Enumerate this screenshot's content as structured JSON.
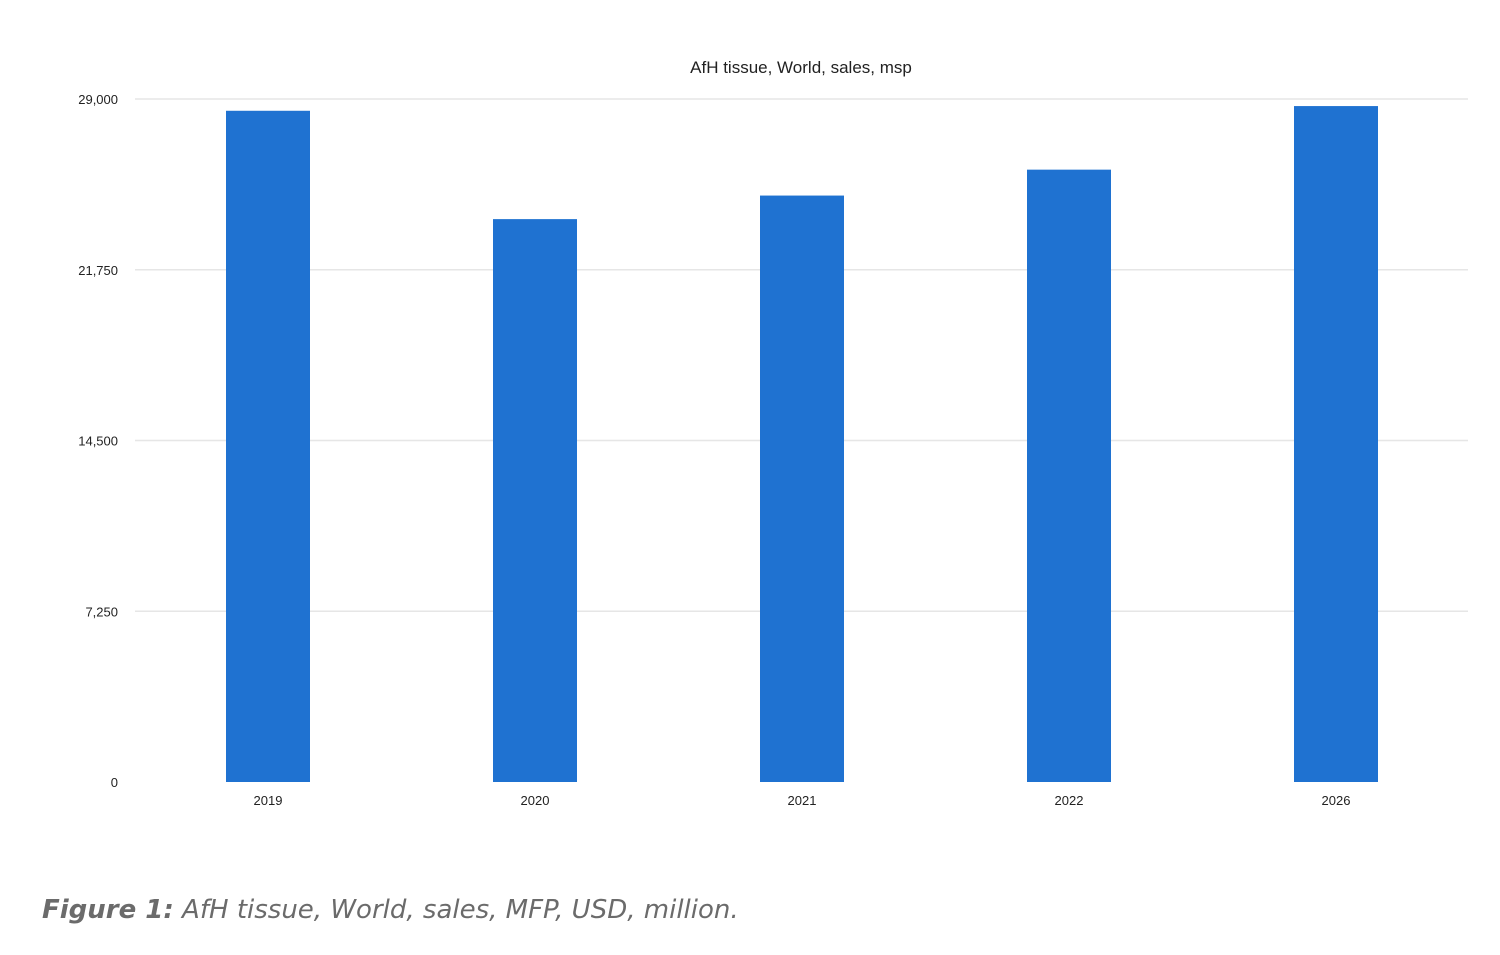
{
  "figure": {
    "label": "Figure 1:",
    "caption": " AfH tissue, World, sales, MFP, USD, million."
  },
  "chart_data": {
    "type": "bar",
    "title": "AfH tissue, World, sales, msp",
    "xlabel": "",
    "ylabel": "",
    "categories": [
      "2019",
      "2020",
      "2021",
      "2022",
      "2026"
    ],
    "values": [
      28500,
      23900,
      24900,
      26000,
      28700
    ],
    "ylim": [
      0,
      29000
    ],
    "yticks": [
      0,
      7250,
      14500,
      21750,
      29000
    ],
    "ytick_labels": [
      "0",
      "7,250",
      "14,500",
      "21,750",
      "29,000"
    ],
    "grid": true,
    "legend": "none",
    "bar_color": "#1f72d1"
  }
}
